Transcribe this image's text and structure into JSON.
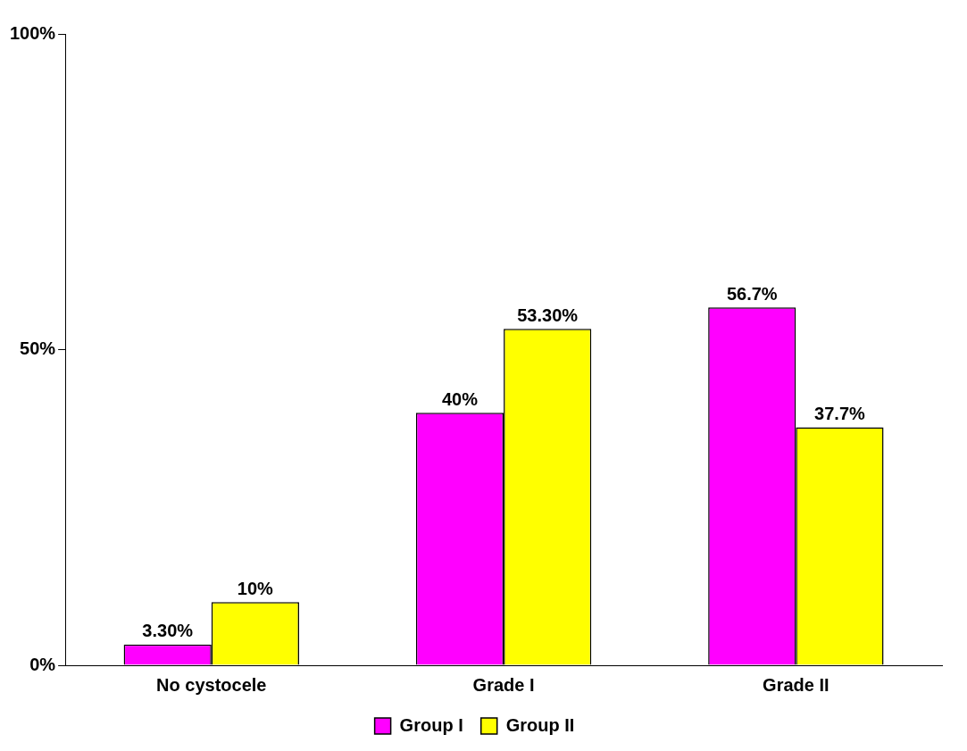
{
  "chart_data": {
    "type": "bar",
    "categories": [
      "No cystocele",
      "Grade I",
      "Grade II"
    ],
    "series": [
      {
        "name": "Group I",
        "color": "#ff00ff",
        "values": [
          3.3,
          40,
          56.7
        ],
        "value_labels": [
          "3.30%",
          "40%",
          "56.7%"
        ]
      },
      {
        "name": "Group II",
        "color": "#ffff00",
        "values": [
          10,
          53.3,
          37.7
        ],
        "value_labels": [
          "10%",
          "53.30%",
          "37.7%"
        ]
      }
    ],
    "ylim": [
      0,
      100
    ],
    "yticks": [
      {
        "value": 0,
        "label": "0%"
      },
      {
        "value": 50,
        "label": "50%"
      },
      {
        "value": 100,
        "label": "100%"
      }
    ],
    "grid": false,
    "legend": "bottom"
  }
}
